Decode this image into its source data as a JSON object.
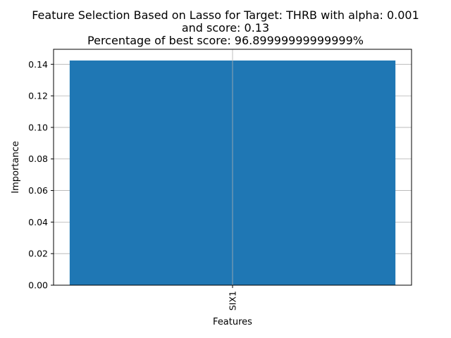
{
  "chart_data": {
    "type": "bar",
    "title_lines": [
      "Feature Selection Based on Lasso for Target: THRB with alpha: 0.001",
      "and score: 0.13",
      "Percentage of best score: 96.89999999999999%"
    ],
    "categories": [
      "SIX1"
    ],
    "values": [
      0.1424
    ],
    "xlabel": "Features",
    "ylabel": "Importance",
    "ylim": [
      0,
      0.1495
    ],
    "yticks": [
      "0.00",
      "0.02",
      "0.04",
      "0.06",
      "0.08",
      "0.10",
      "0.12",
      "0.14"
    ],
    "grid": true,
    "bar_color": "#1f77b4"
  }
}
